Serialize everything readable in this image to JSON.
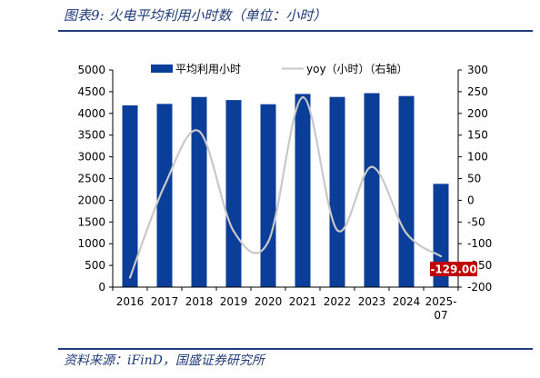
{
  "header": {
    "title": "图表9:  火电平均利用小时数（单位：小时）"
  },
  "footer": {
    "source": "资料来源：iFinD，国盛证券研究所"
  },
  "colors": {
    "bar": "#0b3e98",
    "line": "#c8c8c8",
    "callout_bg": "#c00000",
    "rule": "#1f3b7a"
  },
  "chart_data": {
    "type": "bar",
    "categories": [
      "2016",
      "2017",
      "2018",
      "2019",
      "2020",
      "2021",
      "2022",
      "2023",
      "2024",
      "2025-07"
    ],
    "category_lines": [
      [
        "2016"
      ],
      [
        "2017"
      ],
      [
        "2018"
      ],
      [
        "2019"
      ],
      [
        "2020"
      ],
      [
        "2021"
      ],
      [
        "2022"
      ],
      [
        "2023"
      ],
      [
        "2024"
      ],
      [
        "2025-",
        "07"
      ]
    ],
    "series": [
      {
        "name": "平均利用小时",
        "type": "bar",
        "axis": "left",
        "values": [
          4185,
          4219,
          4378,
          4307,
          4211,
          4448,
          4379,
          4466,
          4400,
          2378
        ]
      },
      {
        "name": "yoy（小时）（右轴）",
        "type": "line",
        "axis": "right",
        "values": [
          -178,
          34,
          159,
          -71,
          -96,
          237,
          -69,
          77,
          -76,
          -129
        ]
      }
    ],
    "ylim_left": [
      0,
      5000
    ],
    "yticks_left": [
      0,
      500,
      1000,
      1500,
      2000,
      2500,
      3000,
      3500,
      4000,
      4500,
      5000
    ],
    "ylim_right": [
      -200,
      300
    ],
    "yticks_right": [
      -200,
      -150,
      -100,
      -50,
      0,
      50,
      100,
      150,
      200,
      250,
      300
    ],
    "annotation": {
      "text": "-129.00",
      "category": "2025-07",
      "value": -129
    },
    "legend": "top",
    "grid": false
  }
}
